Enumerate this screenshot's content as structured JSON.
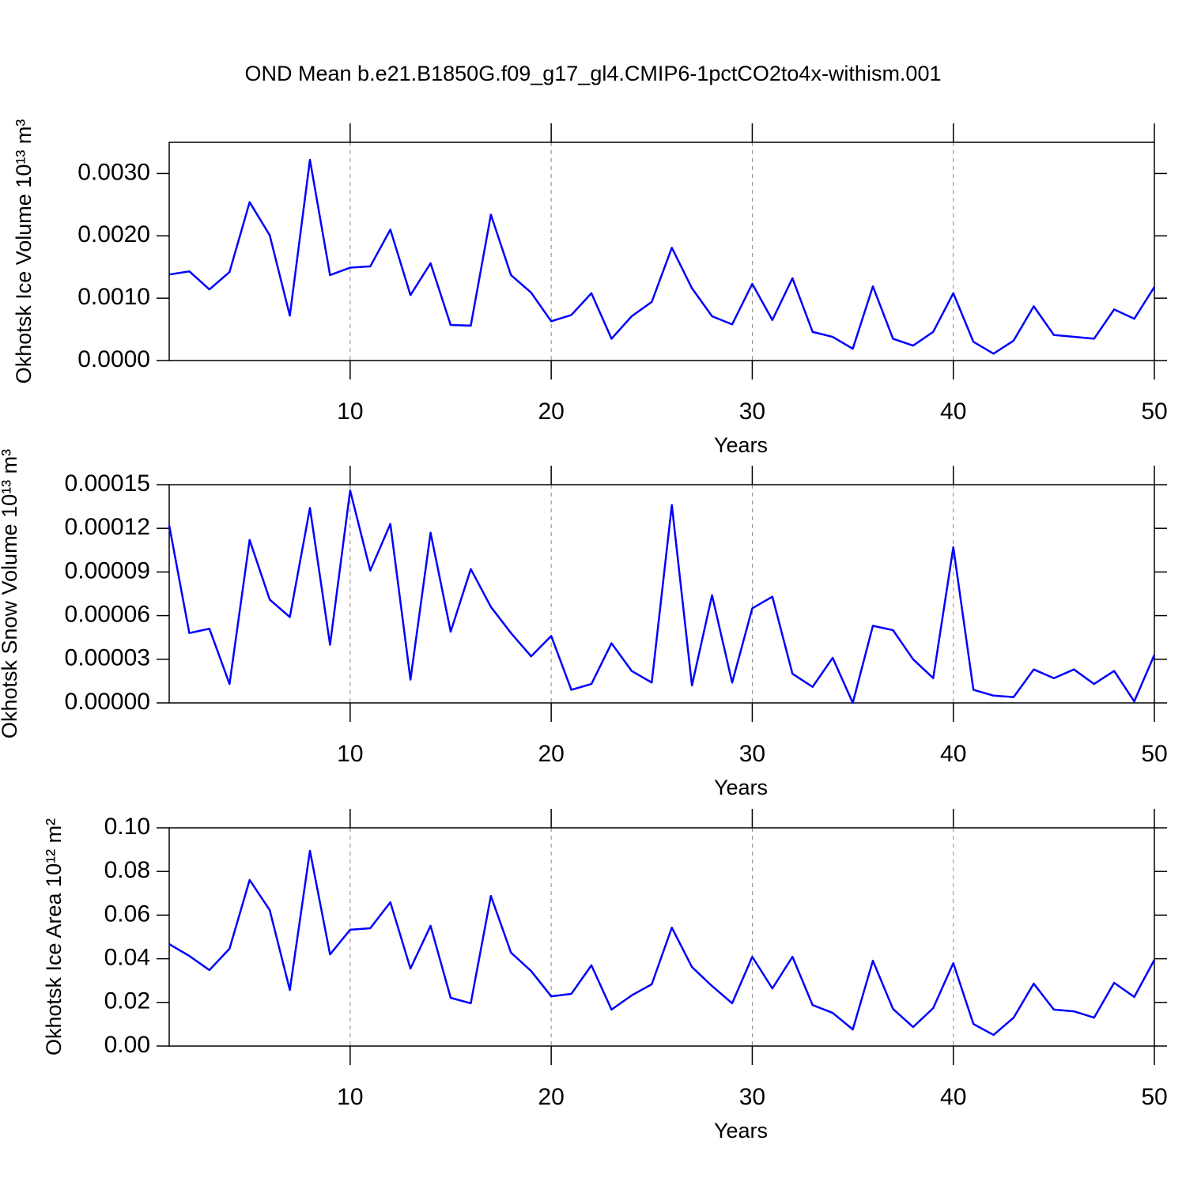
{
  "title": "OND Mean b.e21.B1850G.f09_g17_gl4.CMIP6-1pctCO2to4x-withism.001",
  "chart_data": [
    {
      "type": "line",
      "ylabel": "Okhotsk Ice Volume 10¹³ m³",
      "xlabel": "Years",
      "color": "#0000ff",
      "x": [
        1,
        2,
        3,
        4,
        5,
        6,
        7,
        8,
        9,
        10,
        11,
        12,
        13,
        14,
        15,
        16,
        17,
        18,
        19,
        20,
        21,
        22,
        23,
        24,
        25,
        26,
        27,
        28,
        29,
        30,
        31,
        32,
        33,
        34,
        35,
        36,
        37,
        38,
        39,
        40,
        41,
        42,
        43,
        44,
        45,
        46,
        47,
        48,
        49,
        50
      ],
      "values": [
        0.00138,
        0.00143,
        0.00114,
        0.00142,
        0.00254,
        0.00201,
        0.00072,
        0.00322,
        0.00137,
        0.00149,
        0.00151,
        0.0021,
        0.00105,
        0.00156,
        0.00057,
        0.00056,
        0.00234,
        0.00137,
        0.00109,
        0.00063,
        0.00073,
        0.00108,
        0.00035,
        0.00071,
        0.00094,
        0.00181,
        0.00116,
        0.00071,
        0.00058,
        0.00123,
        0.00065,
        0.00132,
        0.00046,
        0.00038,
        0.00019,
        0.00119,
        0.00035,
        0.00024,
        0.00046,
        0.00108,
        0.0003,
        0.00011,
        0.00032,
        0.00087,
        0.00041,
        0.00038,
        0.00035,
        0.00082,
        0.00067,
        0.00118
      ],
      "xlim": [
        1,
        50
      ],
      "xticks": [
        10,
        20,
        30,
        40,
        50
      ],
      "xgrid": true,
      "ylim": [
        0,
        0.0035
      ],
      "yticks": [
        {
          "value": 0,
          "label": "0.0000"
        },
        {
          "value": 0.001,
          "label": "0.0010"
        },
        {
          "value": 0.002,
          "label": "0.0020"
        },
        {
          "value": 0.003,
          "label": "0.0030"
        }
      ]
    },
    {
      "type": "line",
      "ylabel": "Okhotsk Snow Volume 10¹³ m³",
      "xlabel": "Years",
      "color": "#0000ff",
      "x": [
        1,
        2,
        3,
        4,
        5,
        6,
        7,
        8,
        9,
        10,
        11,
        12,
        13,
        14,
        15,
        16,
        17,
        18,
        19,
        20,
        21,
        22,
        23,
        24,
        25,
        26,
        27,
        28,
        29,
        30,
        31,
        32,
        33,
        34,
        35,
        36,
        37,
        38,
        39,
        40,
        41,
        42,
        43,
        44,
        45,
        46,
        47,
        48,
        49,
        50
      ],
      "values": [
        0.000122,
        4.8e-05,
        5.1e-05,
        1.3e-05,
        0.000112,
        7.1e-05,
        5.9e-05,
        0.000134,
        4e-05,
        0.000146,
        9.1e-05,
        0.000123,
        1.6e-05,
        0.000117,
        4.9e-05,
        9.2e-05,
        6.6e-05,
        4.8e-05,
        3.2e-05,
        4.6e-05,
        9e-06,
        1.3e-05,
        4.1e-05,
        2.2e-05,
        1.4e-05,
        0.000136,
        1.2e-05,
        7.4e-05,
        1.4e-05,
        6.5e-05,
        7.3e-05,
        2e-05,
        1.1e-05,
        3.1e-05,
        0,
        5.3e-05,
        5e-05,
        3e-05,
        1.7e-05,
        0.000107,
        9e-06,
        5e-06,
        4e-06,
        2.3e-05,
        1.7e-05,
        2.3e-05,
        1.3e-05,
        2.2e-05,
        1e-06,
        3.3e-05
      ],
      "xlim": [
        1,
        50
      ],
      "xticks": [
        10,
        20,
        30,
        40,
        50
      ],
      "xgrid": true,
      "ylim": [
        0,
        0.00015
      ],
      "yticks": [
        {
          "value": 0,
          "label": "0.00000"
        },
        {
          "value": 3e-05,
          "label": "0.00003"
        },
        {
          "value": 6e-05,
          "label": "0.00006"
        },
        {
          "value": 9e-05,
          "label": "0.00009"
        },
        {
          "value": 0.00012,
          "label": "0.00012"
        },
        {
          "value": 0.00015,
          "label": "0.00015"
        }
      ]
    },
    {
      "type": "line",
      "ylabel": "Okhotsk Ice Area 10¹² m²",
      "xlabel": "Years",
      "color": "#0000ff",
      "x": [
        1,
        2,
        3,
        4,
        5,
        6,
        7,
        8,
        9,
        10,
        11,
        12,
        13,
        14,
        15,
        16,
        17,
        18,
        19,
        20,
        21,
        22,
        23,
        24,
        25,
        26,
        27,
        28,
        29,
        30,
        31,
        32,
        33,
        34,
        35,
        36,
        37,
        38,
        39,
        40,
        41,
        42,
        43,
        44,
        45,
        46,
        47,
        48,
        49,
        50
      ],
      "values": [
        0.0467,
        0.0413,
        0.0348,
        0.0446,
        0.0761,
        0.0623,
        0.0257,
        0.0895,
        0.042,
        0.0533,
        0.054,
        0.0659,
        0.0355,
        0.0551,
        0.0221,
        0.0196,
        0.0688,
        0.0428,
        0.0344,
        0.0228,
        0.0239,
        0.037,
        0.0167,
        0.0232,
        0.0283,
        0.0543,
        0.0362,
        0.0275,
        0.0196,
        0.0409,
        0.0264,
        0.0409,
        0.0188,
        0.0152,
        0.0076,
        0.0391,
        0.017,
        0.0087,
        0.0174,
        0.038,
        0.0101,
        0.0051,
        0.013,
        0.0286,
        0.0167,
        0.0159,
        0.013,
        0.029,
        0.0225,
        0.0395
      ],
      "xlim": [
        1,
        50
      ],
      "xticks": [
        10,
        20,
        30,
        40,
        50
      ],
      "xgrid": true,
      "ylim": [
        0,
        0.1
      ],
      "yticks": [
        {
          "value": 0,
          "label": "0.00"
        },
        {
          "value": 0.02,
          "label": "0.02"
        },
        {
          "value": 0.04,
          "label": "0.04"
        },
        {
          "value": 0.06,
          "label": "0.06"
        },
        {
          "value": 0.08,
          "label": "0.08"
        },
        {
          "value": 0.1,
          "label": "0.10"
        }
      ]
    }
  ]
}
